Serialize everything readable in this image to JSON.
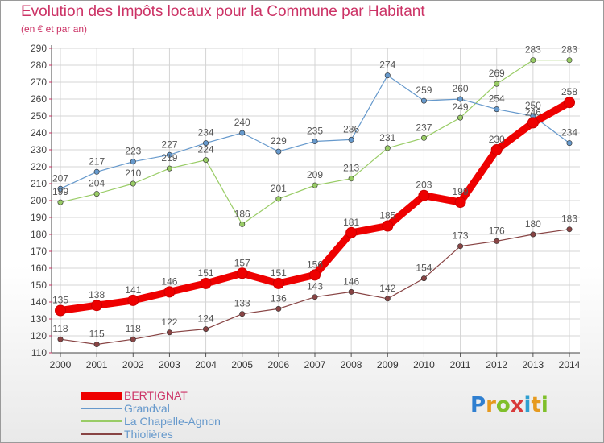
{
  "chart_data": {
    "type": "line",
    "title": "Evolution des Impôts locaux pour la Commune par Habitant",
    "subtitle": "(en € et par an)",
    "categories": [
      "2000",
      "2001",
      "2002",
      "2003",
      "2004",
      "2005",
      "2006",
      "2007",
      "2008",
      "2009",
      "2010",
      "2011",
      "2012",
      "2013",
      "2014"
    ],
    "ylim": [
      110,
      290
    ],
    "yticks": [
      110,
      120,
      130,
      140,
      150,
      160,
      170,
      180,
      190,
      200,
      210,
      220,
      230,
      240,
      250,
      260,
      270,
      280,
      290
    ],
    "grid": true,
    "legend_position": "bottom-left",
    "series": [
      {
        "name": "BERTIGNAT",
        "color": "#ee0000",
        "values": [
          135,
          138,
          141,
          146,
          151,
          157,
          151,
          156,
          181,
          185,
          203,
          199,
          230,
          246,
          258
        ]
      },
      {
        "name": "Grandval",
        "color": "#6699cc",
        "values": [
          207,
          217,
          223,
          227,
          234,
          240,
          229,
          235,
          236,
          274,
          259,
          260,
          254,
          250,
          234
        ]
      },
      {
        "name": "La Chapelle-Agnon",
        "color": "#99cc66",
        "values": [
          199,
          204,
          210,
          219,
          224,
          186,
          201,
          209,
          213,
          231,
          237,
          249,
          269,
          283,
          283
        ]
      },
      {
        "name": "Thiolières",
        "color": "#884444",
        "values": [
          118,
          115,
          118,
          122,
          124,
          133,
          136,
          143,
          146,
          142,
          154,
          173,
          176,
          180,
          183
        ]
      }
    ]
  },
  "legend": {
    "items": [
      {
        "label": "BERTIGNAT",
        "color": "#ee0000",
        "width": 9
      },
      {
        "label": "Grandval",
        "color": "#6699cc",
        "width": 1.5
      },
      {
        "label": "La Chapelle-Agnon",
        "color": "#99cc66",
        "width": 1.5
      },
      {
        "label": "Thiolières",
        "color": "#884444",
        "width": 1.5
      }
    ]
  },
  "logo": {
    "text": "Proxiti",
    "letters": [
      "P",
      "r",
      "o",
      "x",
      "i",
      "t",
      "i"
    ],
    "colors": [
      "#2f7fd0",
      "#e69a1f",
      "#7fbf2a",
      "#d83a3a",
      "#2f9fd0",
      "#e69a1f",
      "#7fbf2a"
    ]
  }
}
